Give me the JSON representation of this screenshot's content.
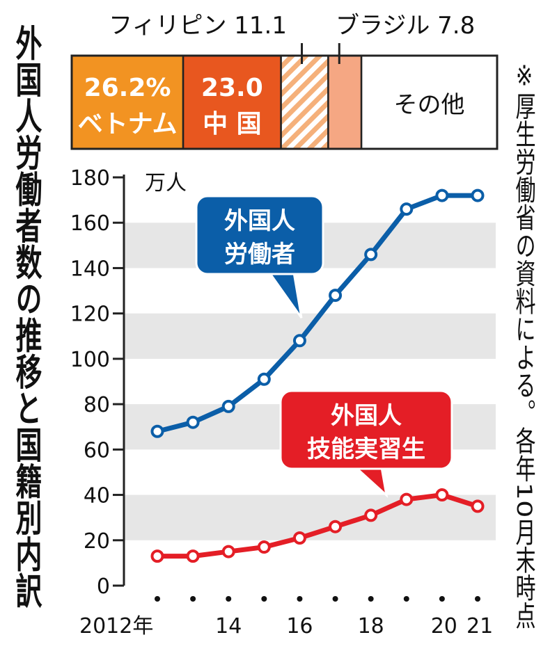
{
  "title": "外国人労働者数の推移と国籍別内訳",
  "note": "※厚生労働省の資料による。各年10月末時点",
  "chart_data": [
    {
      "type": "bar",
      "orientation": "horizontal-stacked-100",
      "segments": [
        {
          "name": "ベトナム",
          "value": 26.2,
          "value_label": "26.2%",
          "color": "#f29322",
          "pattern": "solid"
        },
        {
          "name": "中国",
          "value": 23.0,
          "value_label": "23.0",
          "display_name": "中 国",
          "color": "#e8571f",
          "pattern": "solid"
        },
        {
          "name": "フィリピン",
          "value": 11.1,
          "value_label": "11.1",
          "color": "#f5b07a",
          "pattern": "hatched"
        },
        {
          "name": "ブラジル",
          "value": 7.8,
          "value_label": "7.8",
          "color": "#f5a783",
          "pattern": "solid"
        },
        {
          "name": "その他",
          "value": 31.9,
          "display_name": "その他",
          "color": "#ffffff",
          "pattern": "solid"
        }
      ]
    },
    {
      "type": "line",
      "ylabel": "万人",
      "ylim": [
        0,
        180
      ],
      "yticks": [
        0,
        20,
        40,
        60,
        80,
        100,
        120,
        140,
        160,
        180
      ],
      "x": [
        2012,
        2013,
        2014,
        2015,
        2016,
        2017,
        2018,
        2019,
        2020,
        2021
      ],
      "xtick_labels": [
        {
          "x": 2012,
          "label": "2012年"
        },
        {
          "x": 2014,
          "label": "14"
        },
        {
          "x": 2016,
          "label": "16"
        },
        {
          "x": 2018,
          "label": "18"
        },
        {
          "x": 2020,
          "label": "20"
        },
        {
          "x": 2021,
          "label": "21"
        }
      ],
      "grid": "horizontal-bands",
      "series": [
        {
          "name": "外国人労働者",
          "label_lines": [
            "外国人",
            "労働者"
          ],
          "color": "#0b5ea8",
          "values": [
            68,
            72,
            79,
            91,
            108,
            128,
            146,
            166,
            172,
            172
          ]
        },
        {
          "name": "外国人技能実習生",
          "label_lines": [
            "外国人",
            "技能実習生"
          ],
          "color": "#e41e26",
          "values": [
            13,
            13,
            15,
            17,
            21,
            26,
            31,
            38,
            40,
            35
          ]
        }
      ]
    }
  ]
}
